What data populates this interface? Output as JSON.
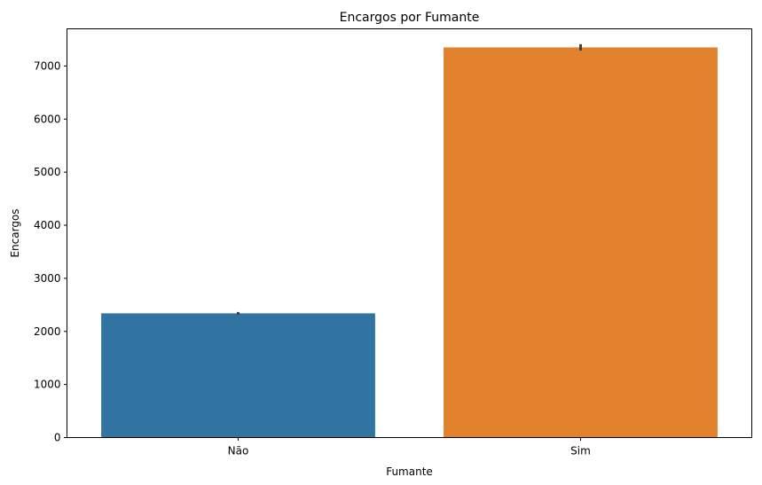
{
  "chart_data": {
    "type": "bar",
    "title": "Encargos por Fumante",
    "xlabel": "Fumante",
    "ylabel": "Encargos",
    "categories": [
      "Não",
      "Sim"
    ],
    "values": [
      2340,
      7350
    ],
    "error_bars": [
      [
        2315,
        2365
      ],
      [
        7290,
        7410
      ]
    ],
    "colors": [
      "#3274a1",
      "#e1812c"
    ],
    "error_bar_color": "#424242",
    "ylim": [
      0,
      7700
    ],
    "yticks": [
      0,
      1000,
      2000,
      3000,
      4000,
      5000,
      6000,
      7000
    ],
    "ytick_labels": [
      "0",
      "1000",
      "2000",
      "3000",
      "4000",
      "5000",
      "6000",
      "7000"
    ],
    "grid": false,
    "legend": "none"
  }
}
